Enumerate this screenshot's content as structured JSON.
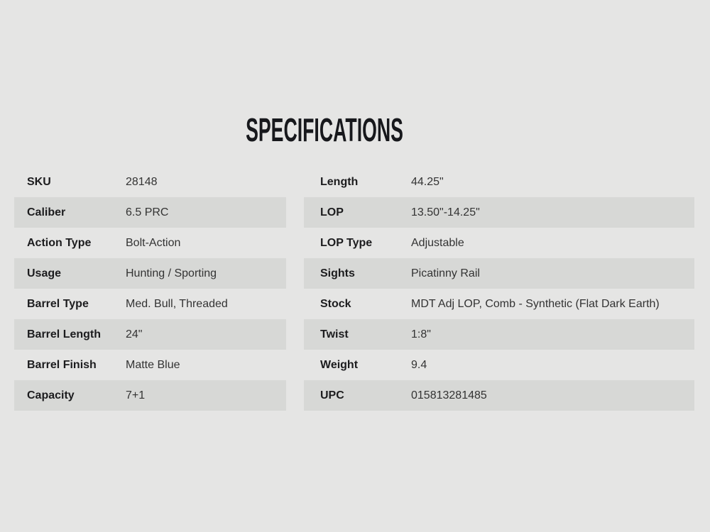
{
  "section": {
    "title": "SPECIFICATIONS"
  },
  "theme": {
    "page_background": "#e5e5e4",
    "stripe_color": "#d7d8d6",
    "title_color": "#17181c",
    "label_color": "#1c1c1e",
    "value_color": "#333333"
  },
  "specs": {
    "left": [
      {
        "label": "SKU",
        "value": "28148"
      },
      {
        "label": "Caliber",
        "value": "6.5 PRC"
      },
      {
        "label": "Action Type",
        "value": "Bolt-Action"
      },
      {
        "label": "Usage",
        "value": "Hunting / Sporting"
      },
      {
        "label": "Barrel Type",
        "value": "Med. Bull, Threaded"
      },
      {
        "label": "Barrel Length",
        "value": "24\""
      },
      {
        "label": "Barrel Finish",
        "value": "Matte Blue"
      },
      {
        "label": "Capacity",
        "value": "7+1"
      }
    ],
    "right": [
      {
        "label": "Length",
        "value": "44.25\""
      },
      {
        "label": "LOP",
        "value": "13.50\"-14.25\""
      },
      {
        "label": "LOP Type",
        "value": "Adjustable"
      },
      {
        "label": "Sights",
        "value": "Picatinny Rail"
      },
      {
        "label": "Stock",
        "value": "MDT Adj LOP, Comb - Synthetic (Flat Dark Earth)"
      },
      {
        "label": "Twist",
        "value": "1:8\""
      },
      {
        "label": "Weight",
        "value": "9.4"
      },
      {
        "label": "UPC",
        "value": "015813281485"
      }
    ]
  }
}
